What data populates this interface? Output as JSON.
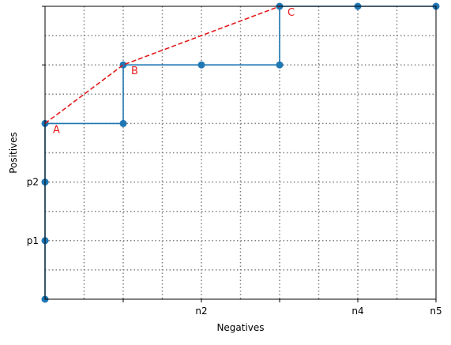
{
  "chart_data": {
    "type": "line",
    "title": "",
    "xlabel": "Negatives",
    "ylabel": "Positives",
    "xlim": [
      0,
      5
    ],
    "ylim": [
      0,
      5
    ],
    "grid": true,
    "x_ticks_major": [
      {
        "value": 0,
        "label": ""
      },
      {
        "value": 1,
        "label": ""
      },
      {
        "value": 2,
        "label": "n2"
      },
      {
        "value": 3,
        "label": ""
      },
      {
        "value": 4,
        "label": "n4"
      },
      {
        "value": 5,
        "label": "n5"
      }
    ],
    "y_ticks_major": [
      {
        "value": 0,
        "label": ""
      },
      {
        "value": 1,
        "label": "p1"
      },
      {
        "value": 2,
        "label": "p2"
      },
      {
        "value": 3,
        "label": ""
      },
      {
        "value": 4,
        "label": ""
      },
      {
        "value": 5,
        "label": ""
      }
    ],
    "minor_step": 0.5,
    "colors": {
      "path": "#1f77b4",
      "hull": "#e41a1c",
      "grid": "#808080"
    },
    "series": [
      {
        "style": "step-path",
        "points": [
          [
            0,
            0
          ],
          [
            0,
            1
          ],
          [
            0,
            2
          ],
          [
            0,
            3
          ],
          [
            1,
            3
          ],
          [
            1,
            4
          ],
          [
            2,
            4
          ],
          [
            3,
            4
          ],
          [
            3,
            5
          ],
          [
            4,
            5
          ],
          [
            5,
            5
          ]
        ]
      },
      {
        "style": "dashed-hull",
        "points": [
          [
            0,
            3
          ],
          [
            1,
            4
          ],
          [
            3,
            5
          ]
        ]
      }
    ],
    "annotations": [
      {
        "text": "A",
        "x": 0,
        "y": 3
      },
      {
        "text": "B",
        "x": 1,
        "y": 4
      },
      {
        "text": "C",
        "x": 3,
        "y": 5
      }
    ]
  }
}
